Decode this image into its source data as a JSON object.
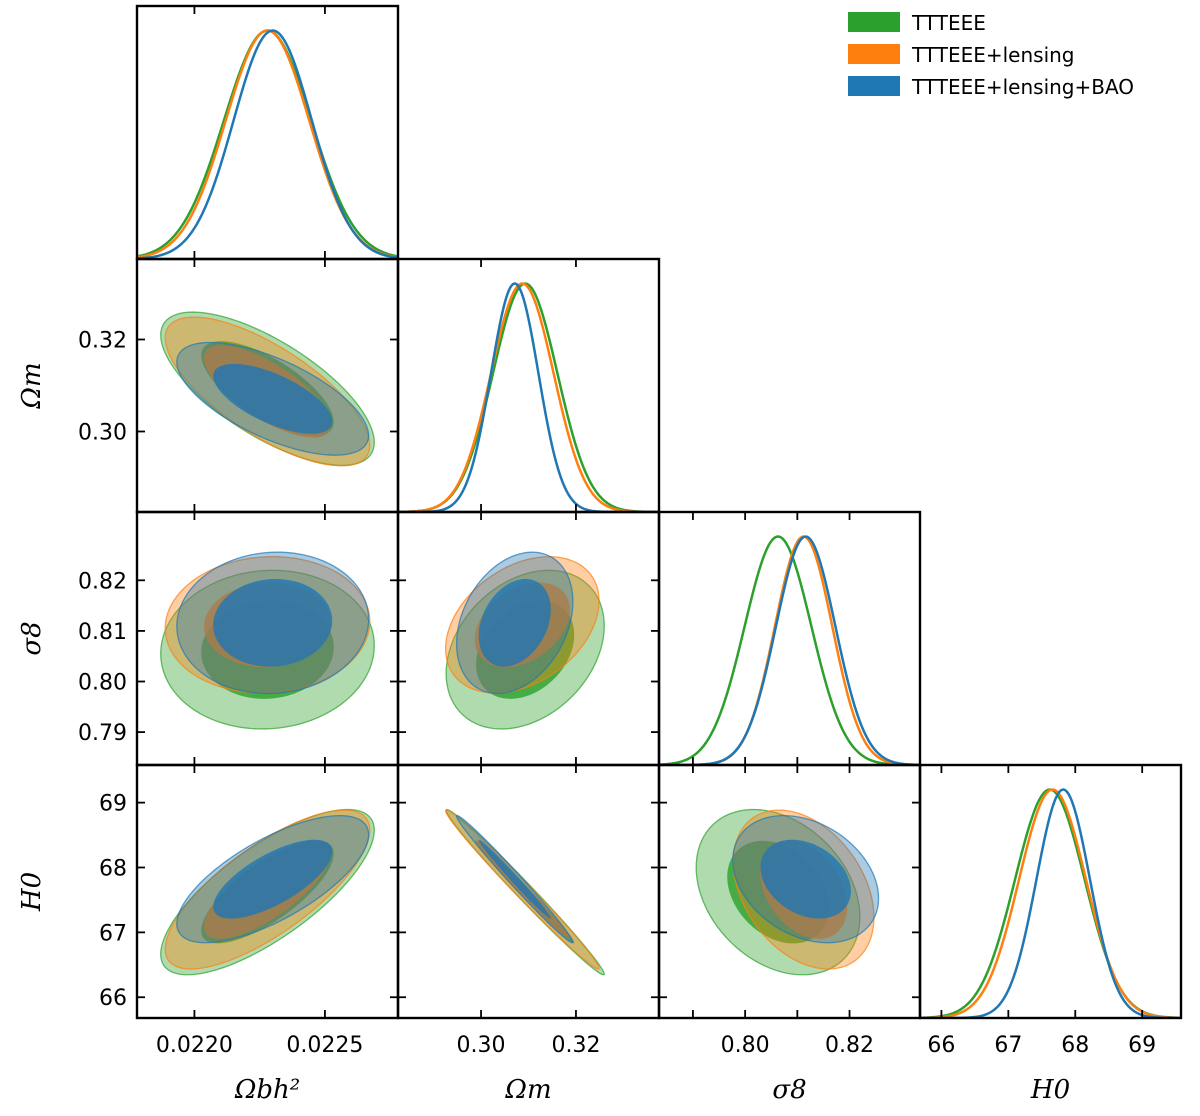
{
  "chart_data": {
    "type": "triangle",
    "title": "",
    "parameters": [
      {
        "id": "omb",
        "label": "Ωbh²",
        "range": [
          0.02178,
          0.02278
        ],
        "ticks": [
          0.022,
          0.0225
        ],
        "tick_labels": [
          "0.0220",
          "0.0225"
        ]
      },
      {
        "id": "omm",
        "label": "Ωm",
        "range": [
          0.2825,
          0.3375
        ],
        "ticks": [
          0.3,
          0.32
        ],
        "tick_labels": [
          "0.30",
          "0.32"
        ]
      },
      {
        "id": "s8",
        "label": "σ8",
        "range": [
          0.7835,
          0.8335
        ],
        "ticks": [
          0.79,
          0.8,
          0.81,
          0.82
        ],
        "tick_labels": [
          "0.79",
          "0.80",
          "0.81",
          "0.82"
        ],
        "x_ticks": [
          0.8,
          0.82
        ],
        "x_tick_labels": [
          "0.80",
          "0.82"
        ]
      },
      {
        "id": "h0",
        "label": "H0",
        "range": [
          65.68,
          69.58
        ],
        "ticks": [
          66,
          67,
          68,
          69
        ],
        "tick_labels": [
          "66",
          "67",
          "68",
          "69"
        ]
      }
    ],
    "legend": {
      "position": "top-right",
      "entries": [
        "TTTEEE",
        "TTTEEE+lensing",
        "TTTEEE+lensing+BAO"
      ]
    },
    "series": [
      {
        "name": "TTTEEE",
        "color": "#2ca02c",
        "mean": {
          "omb": 0.02228,
          "omm": 0.3093,
          "s8": 0.8063,
          "h0": 67.62
        },
        "sigma": {
          "omb": 0.000167,
          "omm": 0.0068,
          "s8": 0.0064,
          "h0": 0.52
        },
        "corr": {
          "omb|omm": -0.7,
          "omb|s8": 0.05,
          "omm|s8": 0.3,
          "omb|h0": 0.75,
          "omm|h0": -0.99,
          "s8|h0": -0.3
        }
      },
      {
        "name": "TTTEEE+lensing",
        "color": "#ff7f0e",
        "mean": {
          "omb": 0.02228,
          "omm": 0.3087,
          "s8": 0.8112,
          "h0": 67.66
        },
        "sigma": {
          "omb": 0.00016,
          "omm": 0.0066,
          "s8": 0.0055,
          "h0": 0.5
        },
        "corr": {
          "omb|omm": -0.72,
          "omb|s8": 0.05,
          "omm|s8": 0.35,
          "omb|h0": 0.75,
          "omm|h0": -0.99,
          "s8|h0": -0.35
        }
      },
      {
        "name": "TTTEEE+lensing+BAO",
        "color": "#1f77b4",
        "mean": {
          "omb": 0.0223,
          "omm": 0.3071,
          "s8": 0.8116,
          "h0": 67.82
        },
        "sigma": {
          "omb": 0.00015,
          "omm": 0.005,
          "s8": 0.0057,
          "h0": 0.4
        },
        "corr": {
          "omb|omm": -0.65,
          "omb|s8": 0.05,
          "omm|s8": 0.3,
          "omb|h0": 0.7,
          "omm|h0": -0.99,
          "s8|h0": -0.3
        }
      }
    ],
    "contour_levels": [
      "68%",
      "95%"
    ]
  }
}
